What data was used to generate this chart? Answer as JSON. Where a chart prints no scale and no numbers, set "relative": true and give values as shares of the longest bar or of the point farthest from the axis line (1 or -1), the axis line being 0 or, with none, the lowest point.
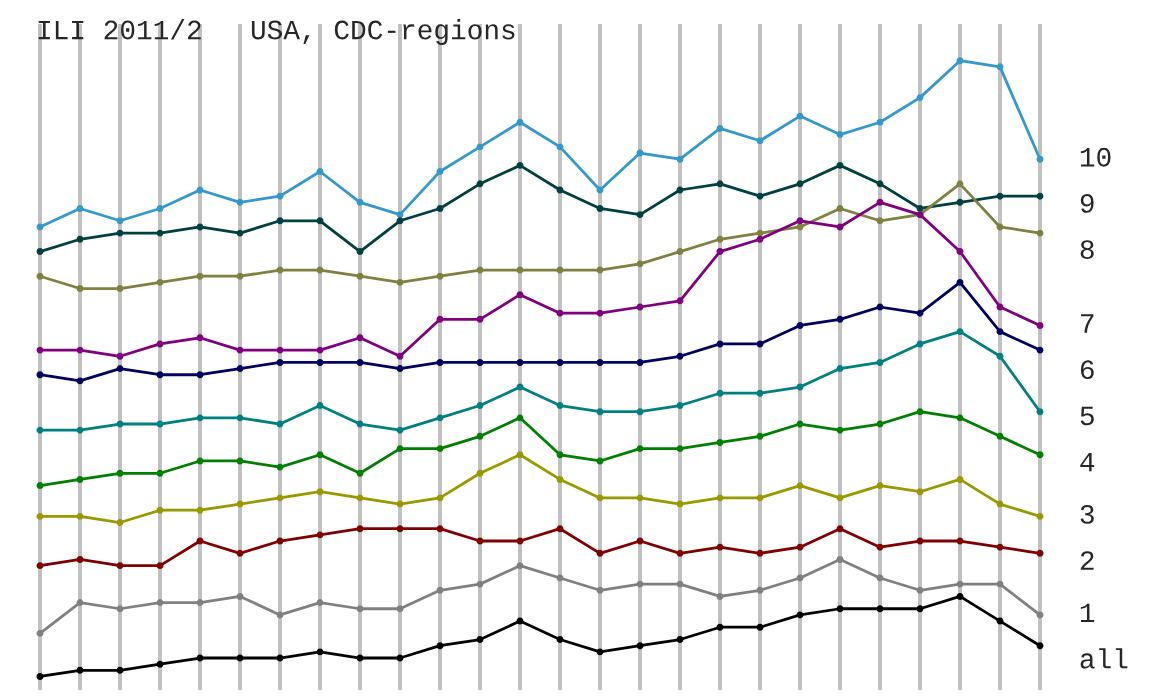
{
  "chart_data": {
    "type": "line",
    "title": "ILI 2011/2",
    "subtitle": "USA, CDC-regions",
    "relative": true,
    "grid": "x",
    "marker": "circle",
    "line_style": "solid",
    "legend": false,
    "categories": [
      null,
      null,
      null,
      null,
      null,
      null,
      null,
      null,
      null,
      null,
      null,
      null,
      null,
      null,
      null,
      null,
      null,
      null,
      null,
      null,
      null,
      null,
      null,
      null,
      null,
      null
    ],
    "series": [
      {
        "name": "10",
        "color": "#3399cc",
        "values": [
          0.73,
          0.76,
          0.74,
          0.76,
          0.79,
          0.77,
          0.78,
          0.82,
          0.77,
          0.75,
          0.82,
          0.86,
          0.9,
          0.86,
          0.79,
          0.85,
          0.84,
          0.89,
          0.87,
          0.91,
          0.88,
          0.9,
          0.94,
          1.0,
          0.99,
          0.84
        ]
      },
      {
        "name": "9",
        "color": "#004040",
        "values": [
          0.69,
          0.71,
          0.72,
          0.72,
          0.73,
          0.72,
          0.74,
          0.74,
          0.69,
          0.74,
          0.76,
          0.8,
          0.83,
          0.79,
          0.76,
          0.75,
          0.79,
          0.8,
          0.78,
          0.8,
          0.83,
          0.8,
          0.76,
          0.77,
          0.78,
          0.78
        ]
      },
      {
        "name": "8",
        "color": "#808040",
        "values": [
          0.65,
          0.63,
          0.63,
          0.64,
          0.65,
          0.65,
          0.66,
          0.66,
          0.65,
          0.64,
          0.65,
          0.66,
          0.66,
          0.66,
          0.66,
          0.67,
          0.69,
          0.71,
          0.72,
          0.73,
          0.76,
          0.74,
          0.75,
          0.8,
          0.73,
          0.72
        ]
      },
      {
        "name": "7",
        "color": "#800080",
        "values": [
          0.53,
          0.53,
          0.52,
          0.54,
          0.55,
          0.53,
          0.53,
          0.53,
          0.55,
          0.52,
          0.58,
          0.58,
          0.62,
          0.59,
          0.59,
          0.6,
          0.61,
          0.69,
          0.71,
          0.74,
          0.73,
          0.77,
          0.75,
          0.69,
          0.6,
          0.57
        ]
      },
      {
        "name": "6",
        "color": "#000060",
        "values": [
          0.49,
          0.48,
          0.5,
          0.49,
          0.49,
          0.5,
          0.51,
          0.51,
          0.51,
          0.5,
          0.51,
          0.51,
          0.51,
          0.51,
          0.51,
          0.51,
          0.52,
          0.54,
          0.54,
          0.57,
          0.58,
          0.6,
          0.59,
          0.64,
          0.56,
          0.53
        ]
      },
      {
        "name": "5",
        "color": "#008080",
        "values": [
          0.4,
          0.4,
          0.41,
          0.41,
          0.42,
          0.42,
          0.41,
          0.44,
          0.41,
          0.4,
          0.42,
          0.44,
          0.47,
          0.44,
          0.43,
          0.43,
          0.44,
          0.46,
          0.46,
          0.47,
          0.5,
          0.51,
          0.54,
          0.56,
          0.52,
          0.43
        ]
      },
      {
        "name": "4",
        "color": "#008000",
        "values": [
          0.31,
          0.32,
          0.33,
          0.33,
          0.35,
          0.35,
          0.34,
          0.36,
          0.33,
          0.37,
          0.37,
          0.39,
          0.42,
          0.36,
          0.35,
          0.37,
          0.37,
          0.38,
          0.39,
          0.41,
          0.4,
          0.41,
          0.43,
          0.42,
          0.39,
          0.36
        ]
      },
      {
        "name": "3",
        "color": "#999900",
        "values": [
          0.26,
          0.26,
          0.25,
          0.27,
          0.27,
          0.28,
          0.29,
          0.3,
          0.29,
          0.28,
          0.29,
          0.33,
          0.36,
          0.32,
          0.29,
          0.29,
          0.28,
          0.29,
          0.29,
          0.31,
          0.29,
          0.31,
          0.3,
          0.32,
          0.28,
          0.26
        ]
      },
      {
        "name": "2",
        "color": "#800000",
        "values": [
          0.18,
          0.19,
          0.18,
          0.18,
          0.22,
          0.2,
          0.22,
          0.23,
          0.24,
          0.24,
          0.24,
          0.22,
          0.22,
          0.24,
          0.2,
          0.22,
          0.2,
          0.21,
          0.2,
          0.21,
          0.24,
          0.21,
          0.22,
          0.22,
          0.21,
          0.2
        ]
      },
      {
        "name": "1",
        "color": "#808080",
        "values": [
          0.07,
          0.12,
          0.11,
          0.12,
          0.12,
          0.13,
          0.1,
          0.12,
          0.11,
          0.11,
          0.14,
          0.15,
          0.18,
          0.16,
          0.14,
          0.15,
          0.15,
          0.13,
          0.14,
          0.16,
          0.19,
          0.16,
          0.14,
          0.15,
          0.15,
          0.1
        ]
      },
      {
        "name": "all",
        "color": "#000000",
        "values": [
          0.0,
          0.01,
          0.01,
          0.02,
          0.03,
          0.03,
          0.03,
          0.04,
          0.03,
          0.03,
          0.05,
          0.06,
          0.09,
          0.06,
          0.04,
          0.05,
          0.06,
          0.08,
          0.08,
          0.1,
          0.11,
          0.11,
          0.11,
          0.13,
          0.09,
          0.05
        ]
      }
    ]
  }
}
